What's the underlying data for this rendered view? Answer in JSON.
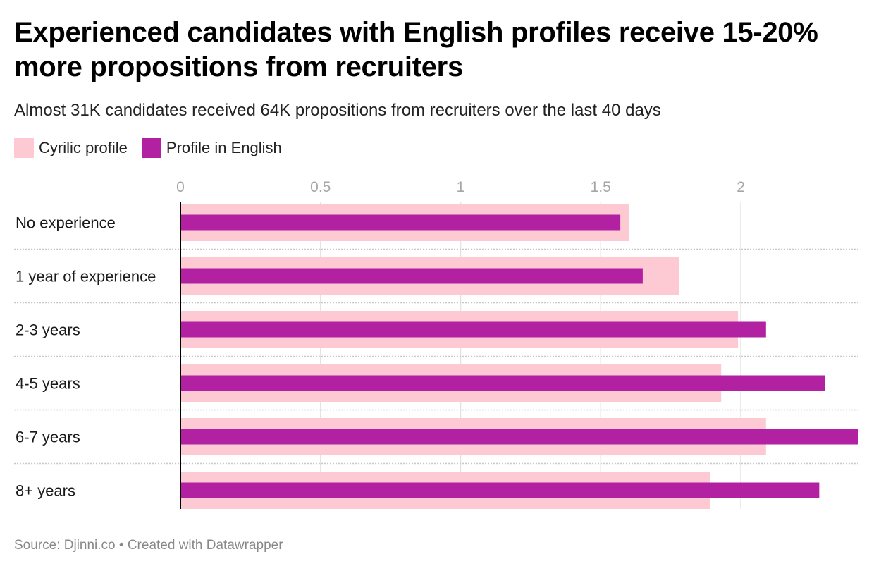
{
  "title": "Experienced candidates with English profiles receive 15-20% more propositions from recruiters",
  "subtitle": "Almost 31K candidates received 64K propositions from recruiters over the last 40 days",
  "footer": "Source: Djinni.co • Created with Datawrapper",
  "colors": {
    "cyrilic": "#fdc9d2",
    "english": "#b221a2",
    "grid": "#e3e3e3",
    "tick_label": "#a6a6a6",
    "row_separator": "#c8c8c8",
    "baseline": "#000000"
  },
  "chart_data": {
    "type": "bar",
    "orientation": "horizontal",
    "categories": [
      "No experience",
      "1 year of experience",
      "2-3 years",
      "4-5 years",
      "6-7 years",
      "8+ years"
    ],
    "series": [
      {
        "name": "Cyrilic profile",
        "values": [
          1.6,
          1.78,
          1.99,
          1.93,
          2.09,
          1.89
        ]
      },
      {
        "name": "Profile in English",
        "values": [
          1.57,
          1.65,
          2.09,
          2.3,
          2.42,
          2.28
        ]
      }
    ],
    "x_ticks": [
      0,
      0.5,
      1,
      1.5,
      2
    ],
    "x_tick_labels": [
      "0",
      "0.5",
      "1",
      "1.5",
      "2"
    ],
    "xlim": [
      0,
      2.42
    ],
    "grid": true,
    "legend_position": "top-left"
  }
}
